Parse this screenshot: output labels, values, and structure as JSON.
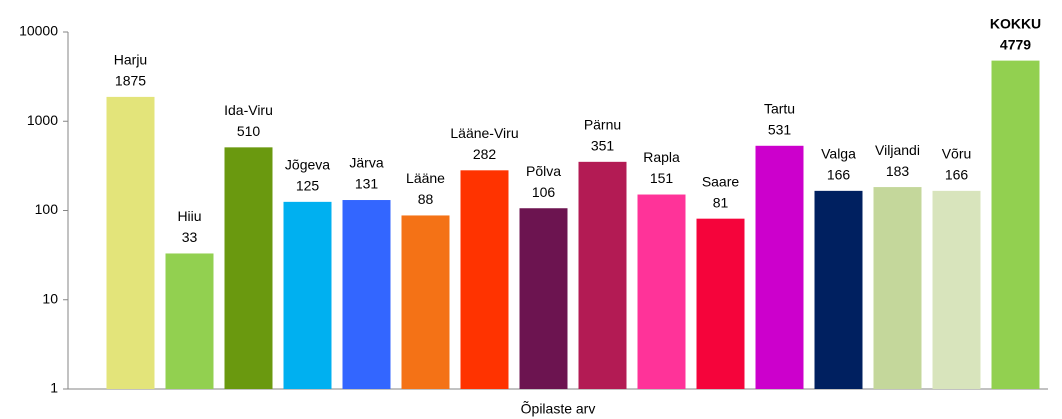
{
  "chart_data": {
    "type": "bar",
    "log_scale": true,
    "categories": [
      "Harju",
      "Hiiu",
      "Ida-Viru",
      "Jõgeva",
      "Järva",
      "Lääne",
      "Lääne-Viru",
      "Põlva",
      "Pärnu",
      "Rapla",
      "Saare",
      "Tartu",
      "Valga",
      "Viljandi",
      "Võru",
      "KOKKU"
    ],
    "values": [
      1875,
      33,
      510,
      125,
      131,
      88,
      282,
      106,
      351,
      151,
      81,
      531,
      166,
      183,
      166,
      4779
    ],
    "colors": [
      "#e3e47a",
      "#92d050",
      "#6a990f",
      "#00b0f0",
      "#3366ff",
      "#f47216",
      "#ff3300",
      "#6c1450",
      "#b31b54",
      "#ff3399",
      "#f5043b",
      "#cc00cc",
      "#002060",
      "#c4d79b",
      "#d8e4bc",
      "#92d050"
    ],
    "xlabel": "Õpilaste arv",
    "ylim": [
      1,
      10000
    ],
    "yticks": [
      1,
      10,
      100,
      1000,
      10000
    ]
  }
}
